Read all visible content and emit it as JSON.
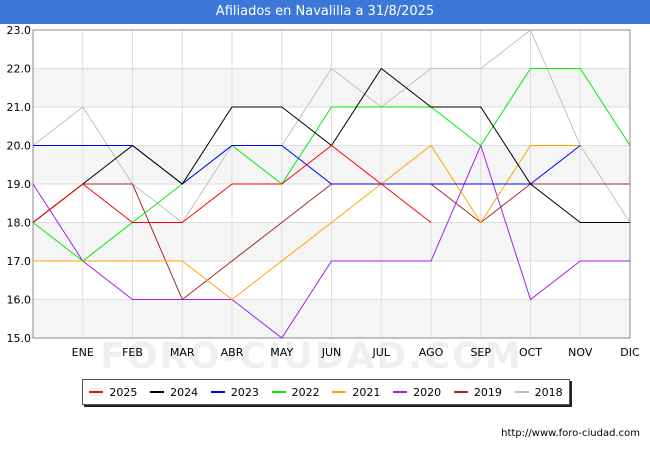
{
  "title": "Afiliados en Navalilla a 31/8/2025",
  "source": "http://www.foro-ciudad.com",
  "watermark": "FORO-CIUDAD.COM",
  "chart_data": {
    "type": "line",
    "categories": [
      "",
      "ENE",
      "FEB",
      "MAR",
      "ABR",
      "MAY",
      "JUN",
      "JUL",
      "AGO",
      "SEP",
      "OCT",
      "NOV",
      "DIC"
    ],
    "ylim": [
      15.0,
      23.0
    ],
    "yticks": [
      "15.0",
      "16.0",
      "17.0",
      "18.0",
      "19.0",
      "20.0",
      "21.0",
      "22.0",
      "23.0"
    ],
    "grid": true,
    "legend_position": "bottom",
    "series": [
      {
        "name": "2025",
        "color": "#ff0000",
        "values": [
          18,
          19,
          18,
          18,
          19,
          19,
          20,
          19,
          18,
          null,
          null,
          null,
          null
        ]
      },
      {
        "name": "2024",
        "color": "#000000",
        "values": [
          18,
          19,
          20,
          19,
          21,
          21,
          20,
          22,
          21,
          21,
          19,
          18,
          18
        ]
      },
      {
        "name": "2023",
        "color": "#0000ff",
        "values": [
          20,
          20,
          20,
          19,
          20,
          20,
          19,
          19,
          19,
          19,
          19,
          20,
          null
        ]
      },
      {
        "name": "2022",
        "color": "#00ee00",
        "values": [
          18,
          17,
          18,
          19,
          20,
          19,
          21,
          21,
          21,
          20,
          22,
          22,
          20
        ]
      },
      {
        "name": "2021",
        "color": "#ffa500",
        "values": [
          17,
          17,
          17,
          17,
          16,
          17,
          18,
          19,
          20,
          18,
          20,
          20,
          null
        ]
      },
      {
        "name": "2020",
        "color": "#a020f0",
        "values": [
          19,
          17,
          16,
          16,
          16,
          15,
          17,
          17,
          17,
          20,
          16,
          17,
          17
        ]
      },
      {
        "name": "2019",
        "color": "#a52a2a",
        "values": [
          18,
          19,
          19,
          16,
          17,
          18,
          19,
          19,
          19,
          18,
          19,
          19,
          19
        ]
      },
      {
        "name": "2018",
        "color": "#c0c0c0",
        "values": [
          20,
          21,
          19,
          18,
          20,
          20,
          22,
          21,
          22,
          22,
          23,
          20,
          18
        ]
      }
    ]
  }
}
